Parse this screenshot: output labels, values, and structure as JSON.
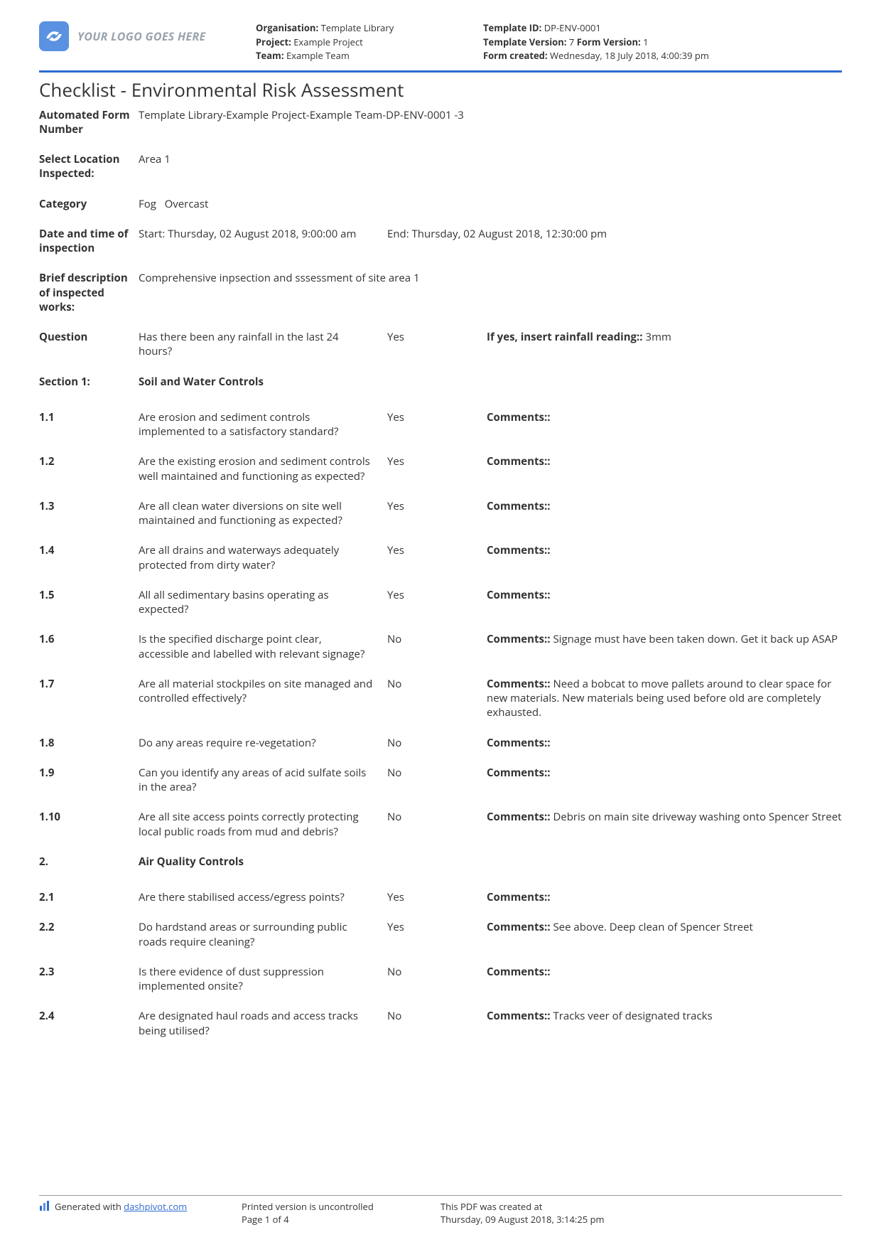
{
  "header": {
    "logo_text": "YOUR LOGO GOES HERE",
    "org_label": "Organisation:",
    "org_value": "Template Library",
    "project_label": "Project:",
    "project_value": "Example Project",
    "team_label": "Team:",
    "team_value": "Example Team",
    "template_id_label": "Template ID:",
    "template_id_value": "DP-ENV-0001",
    "template_version_label": "Template Version:",
    "template_version_value": "7",
    "form_version_label": "Form Version:",
    "form_version_value": "1",
    "form_created_label": "Form created:",
    "form_created_value": "Wednesday, 18 July 2018, 4:00:39 pm"
  },
  "title": "Checklist - Environmental Risk Assessment",
  "meta_rows": {
    "form_number_label": "Automated Form Number",
    "form_number_value": "Template Library-Example Project-Example Team-DP-ENV-0001   -3",
    "location_label": "Select Location Inspected:",
    "location_value": "Area 1",
    "category_label": "Category",
    "category_value": "Fog   Overcast",
    "datetime_label": "Date and time of inspection",
    "datetime_start": "Start: Thursday, 02 August 2018, 9:00:00 am",
    "datetime_end": "End: Thursday, 02 August 2018, 12:30:00 pm",
    "brief_label": "Brief description of inspected works:",
    "brief_value": "Comprehensive inpsection and sssessment of site area 1",
    "question_label": "Question",
    "question_text": "Has there been any rainfall in the last 24 hours?",
    "question_answer": "Yes",
    "rainfall_label": "If yes, insert rainfall reading::",
    "rainfall_value": " 3mm"
  },
  "section1": {
    "label": "Section 1:",
    "title": "Soil and Water Controls"
  },
  "section2": {
    "label": "2.",
    "title": "Air Quality Controls"
  },
  "items": [
    {
      "num": "1.1",
      "q": "Are erosion and sediment controls implemented to a satisfactory standard?",
      "a": "Yes",
      "c": ""
    },
    {
      "num": "1.2",
      "q": "Are the existing erosion and sediment controls well maintained and functioning as expected?",
      "a": "Yes",
      "c": ""
    },
    {
      "num": "1.3",
      "q": "Are all clean water diversions on site well maintained and functioning as expected?",
      "a": "Yes",
      "c": ""
    },
    {
      "num": "1.4",
      "q": "Are all drains and waterways adequately protected from dirty water?",
      "a": "Yes",
      "c": ""
    },
    {
      "num": "1.5",
      "q": "All all sedimentary basins operating as expected?",
      "a": "Yes",
      "c": ""
    },
    {
      "num": "1.6",
      "q": "Is the specified discharge point clear, accessible and labelled with relevant signage?",
      "a": "No",
      "c": " Signage must have been taken down. Get it back up ASAP"
    },
    {
      "num": "1.7",
      "q": "Are all material stockpiles on site managed and controlled effectively?",
      "a": "No",
      "c": " Need a bobcat to move pallets around to clear space for new materials. New materials being used before old are completely exhausted."
    },
    {
      "num": "1.8",
      "q": "Do any areas require re-vegetation?",
      "a": "No",
      "c": ""
    },
    {
      "num": "1.9",
      "q": "Can you identify any areas of acid sulfate soils in the area?",
      "a": "No",
      "c": ""
    },
    {
      "num": "1.10",
      "q": "Are all site access points correctly protecting local public roads from mud and debris?",
      "a": "No",
      "c": " Debris on main site driveway washing onto Spencer Street"
    }
  ],
  "items2": [
    {
      "num": "2.1",
      "q": "Are there stabilised access/egress points?",
      "a": "Yes",
      "c": ""
    },
    {
      "num": "2.2",
      "q": "Do hardstand areas or surrounding public roads require cleaning?",
      "a": "Yes",
      "c": " See above. Deep clean of Spencer Street"
    },
    {
      "num": "2.3",
      "q": "Is there evidence of dust suppression implemented onsite?",
      "a": "No",
      "c": ""
    },
    {
      "num": "2.4",
      "q": "Are designated haul roads and access tracks being utilised?",
      "a": "No",
      "c": " Tracks veer of designated tracks"
    }
  ],
  "comments_label": "Comments::",
  "footer": {
    "generated_prefix": "Generated with ",
    "generated_link": "dashpivot.com",
    "uncontrolled": "Printed version is uncontrolled",
    "page": "Page 1 of 4",
    "created_label": "This PDF was created at",
    "created_value": "Thursday, 09 August 2018, 3:14:25 pm"
  }
}
